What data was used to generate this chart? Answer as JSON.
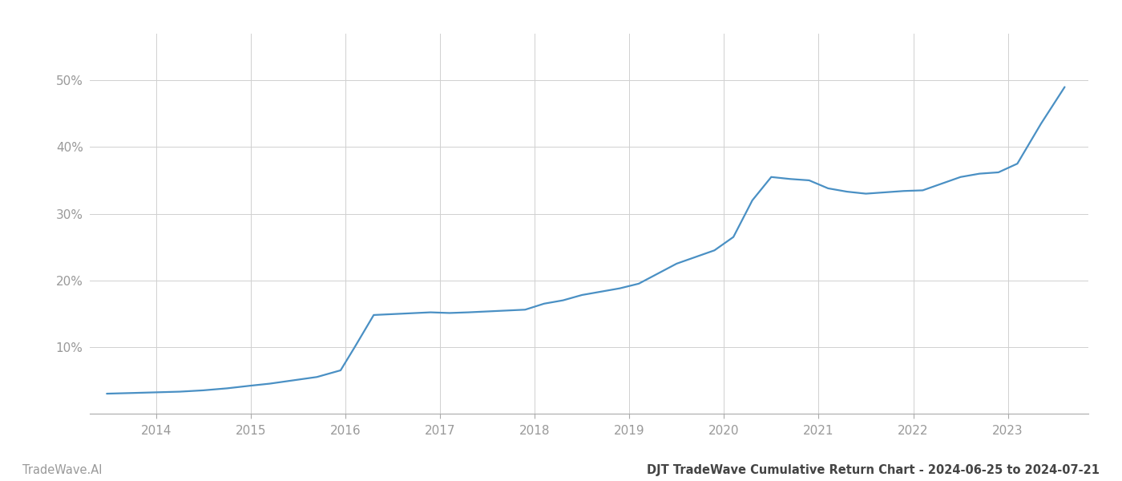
{
  "x_years": [
    2013.48,
    2013.75,
    2014.0,
    2014.25,
    2014.5,
    2014.75,
    2015.0,
    2015.2,
    2015.45,
    2015.7,
    2015.95,
    2016.1,
    2016.3,
    2016.6,
    2016.9,
    2017.1,
    2017.3,
    2017.6,
    2017.9,
    2018.1,
    2018.3,
    2018.5,
    2018.7,
    2018.9,
    2019.1,
    2019.3,
    2019.5,
    2019.7,
    2019.9,
    2020.1,
    2020.3,
    2020.5,
    2020.7,
    2020.9,
    2021.1,
    2021.3,
    2021.5,
    2021.7,
    2021.9,
    2022.1,
    2022.3,
    2022.5,
    2022.7,
    2022.9,
    2023.1,
    2023.35,
    2023.6
  ],
  "y_values": [
    3.0,
    3.1,
    3.2,
    3.3,
    3.5,
    3.8,
    4.2,
    4.5,
    5.0,
    5.5,
    6.5,
    10.0,
    14.8,
    15.0,
    15.2,
    15.1,
    15.2,
    15.4,
    15.6,
    16.5,
    17.0,
    17.8,
    18.3,
    18.8,
    19.5,
    21.0,
    22.5,
    23.5,
    24.5,
    26.5,
    32.0,
    35.5,
    35.2,
    35.0,
    33.8,
    33.3,
    33.0,
    33.2,
    33.4,
    33.5,
    34.5,
    35.5,
    36.0,
    36.2,
    37.5,
    43.5,
    49.0
  ],
  "line_color": "#4a90c4",
  "line_width": 1.6,
  "background_color": "#ffffff",
  "grid_color": "#d0d0d0",
  "title_text": "DJT TradeWave Cumulative Return Chart - 2024-06-25 to 2024-07-21",
  "watermark_text": "TradeWave.AI",
  "xlim": [
    2013.3,
    2023.85
  ],
  "ylim": [
    0,
    57
  ],
  "yticks": [
    0,
    10,
    20,
    30,
    40,
    50
  ],
  "ytick_labels": [
    "",
    "10%",
    "20%",
    "30%",
    "40%",
    "50%"
  ],
  "xtick_years": [
    2014,
    2015,
    2016,
    2017,
    2018,
    2019,
    2020,
    2021,
    2022,
    2023
  ],
  "title_fontsize": 10.5,
  "watermark_fontsize": 10.5,
  "tick_fontsize": 11,
  "tick_color": "#999999",
  "spine_color": "#aaaaaa"
}
